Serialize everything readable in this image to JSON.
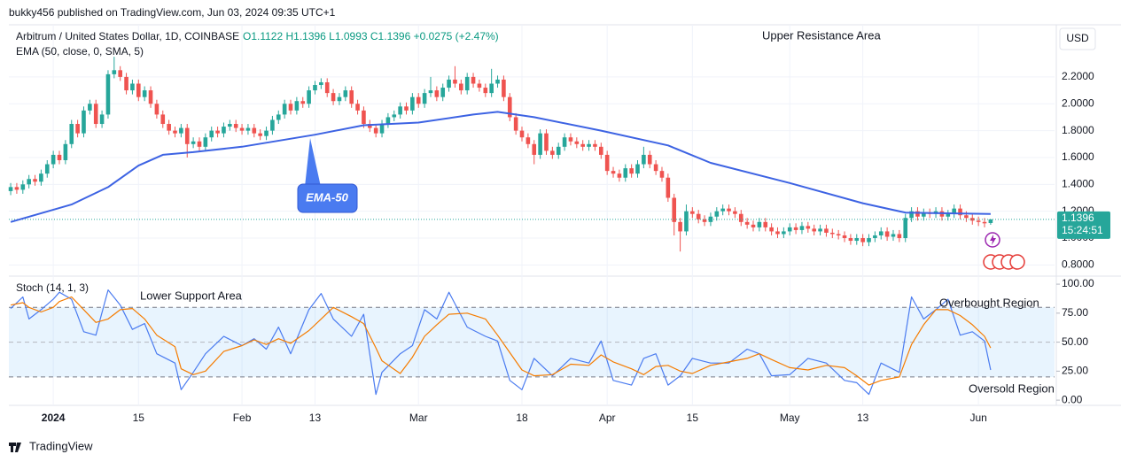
{
  "chart_data": {
    "type": "candlestick",
    "header": "bukky456 published on TradingView.com, Jun 03, 2024 09:35 UTC+1",
    "symbol": "Arbitrum / United States Dollar, 1D, COINBASE",
    "ohlc_text": "O1.1122 H1.1396 L1.0993 C1.1396 +0.0275 (+2.47%)",
    "currency": "USD",
    "up_color": "#26a69a",
    "down_color": "#ef5350",
    "grid": true,
    "ylim": [
      0.73,
      2.575
    ],
    "yticks": [
      {
        "value": 0.8,
        "label": "0.8000"
      },
      {
        "value": 1.0,
        "label": "1.0000"
      },
      {
        "value": 1.2,
        "label": "1.2000"
      },
      {
        "value": 1.4,
        "label": "1.4000"
      },
      {
        "value": 1.6,
        "label": "1.6000"
      },
      {
        "value": 1.8,
        "label": "1.8000"
      },
      {
        "value": 2.0,
        "label": "2.0000"
      },
      {
        "value": 2.2,
        "label": "2.2000"
      }
    ],
    "xlim": [
      -0.3,
      171.5
    ],
    "xticks": [
      {
        "value": 7,
        "label": "2024"
      },
      {
        "value": 21,
        "label": "15"
      },
      {
        "value": 38,
        "label": "Feb"
      },
      {
        "value": 50,
        "label": "13"
      },
      {
        "value": 67,
        "label": "Mar"
      },
      {
        "value": 84,
        "label": "18"
      },
      {
        "value": 98,
        "label": "Apr"
      },
      {
        "value": 112,
        "label": "15"
      },
      {
        "value": 128,
        "label": "May"
      },
      {
        "value": 140,
        "label": "13"
      },
      {
        "value": 159,
        "label": "Jun"
      }
    ],
    "candles": [
      [
        1.35,
        1.41,
        1.32,
        1.38
      ],
      [
        1.38,
        1.41,
        1.33,
        1.36
      ],
      [
        1.36,
        1.43,
        1.33,
        1.4
      ],
      [
        1.4,
        1.47,
        1.37,
        1.44
      ],
      [
        1.44,
        1.47,
        1.39,
        1.42
      ],
      [
        1.42,
        1.51,
        1.39,
        1.48
      ],
      [
        1.48,
        1.58,
        1.45,
        1.55
      ],
      [
        1.55,
        1.65,
        1.52,
        1.62
      ],
      [
        1.62,
        1.65,
        1.55,
        1.58
      ],
      [
        1.58,
        1.73,
        1.55,
        1.7
      ],
      [
        1.7,
        1.88,
        1.67,
        1.85
      ],
      [
        1.85,
        1.88,
        1.75,
        1.78
      ],
      [
        1.78,
        1.98,
        1.75,
        1.95
      ],
      [
        1.95,
        2.03,
        1.92,
        2.0
      ],
      [
        2.0,
        2.03,
        1.82,
        1.85
      ],
      [
        1.85,
        1.95,
        1.82,
        1.92
      ],
      [
        1.92,
        2.25,
        1.89,
        2.22
      ],
      [
        2.22,
        2.35,
        2.19,
        2.25
      ],
      [
        2.25,
        2.28,
        2.17,
        2.2
      ],
      [
        2.2,
        2.23,
        2.07,
        2.1
      ],
      [
        2.1,
        2.18,
        2.07,
        2.15
      ],
      [
        2.15,
        2.18,
        2.02,
        2.05
      ],
      [
        2.05,
        2.13,
        2.02,
        2.1
      ],
      [
        2.1,
        2.13,
        1.97,
        2.0
      ],
      [
        2.0,
        2.03,
        1.89,
        1.92
      ],
      [
        1.92,
        1.95,
        1.82,
        1.85
      ],
      [
        1.85,
        1.88,
        1.77,
        1.8
      ],
      [
        1.8,
        1.83,
        1.75,
        1.78
      ],
      [
        1.78,
        1.85,
        1.75,
        1.82
      ],
      [
        1.82,
        1.85,
        1.6,
        1.7
      ],
      [
        1.7,
        1.75,
        1.67,
        1.72
      ],
      [
        1.72,
        1.75,
        1.65,
        1.68
      ],
      [
        1.68,
        1.78,
        1.65,
        1.75
      ],
      [
        1.75,
        1.83,
        1.72,
        1.8
      ],
      [
        1.8,
        1.83,
        1.75,
        1.78
      ],
      [
        1.78,
        1.86,
        1.75,
        1.83
      ],
      [
        1.83,
        1.88,
        1.8,
        1.85
      ],
      [
        1.85,
        1.88,
        1.79,
        1.82
      ],
      [
        1.82,
        1.85,
        1.77,
        1.8
      ],
      [
        1.8,
        1.85,
        1.77,
        1.82
      ],
      [
        1.82,
        1.85,
        1.75,
        1.78
      ],
      [
        1.78,
        1.81,
        1.73,
        1.76
      ],
      [
        1.76,
        1.83,
        1.73,
        1.8
      ],
      [
        1.8,
        1.91,
        1.77,
        1.88
      ],
      [
        1.88,
        1.95,
        1.85,
        1.92
      ],
      [
        1.92,
        2.03,
        1.89,
        2.0
      ],
      [
        2.0,
        2.03,
        1.92,
        1.95
      ],
      [
        1.95,
        2.05,
        1.92,
        2.02
      ],
      [
        2.02,
        2.05,
        1.97,
        2.0
      ],
      [
        2.0,
        2.13,
        1.97,
        2.1
      ],
      [
        2.1,
        2.17,
        2.07,
        2.14
      ],
      [
        2.14,
        2.19,
        2.11,
        2.16
      ],
      [
        2.16,
        2.19,
        2.05,
        2.08
      ],
      [
        2.08,
        2.11,
        1.99,
        2.02
      ],
      [
        2.02,
        2.08,
        1.99,
        2.05
      ],
      [
        2.05,
        2.13,
        2.02,
        2.1
      ],
      [
        2.1,
        2.13,
        1.97,
        2.0
      ],
      [
        2.0,
        2.03,
        1.92,
        1.95
      ],
      [
        1.95,
        1.98,
        1.82,
        1.85
      ],
      [
        1.85,
        1.88,
        1.79,
        1.82
      ],
      [
        1.82,
        1.85,
        1.75,
        1.78
      ],
      [
        1.78,
        1.88,
        1.75,
        1.85
      ],
      [
        1.85,
        1.93,
        1.82,
        1.9
      ],
      [
        1.9,
        1.95,
        1.87,
        1.92
      ],
      [
        1.92,
        2.01,
        1.89,
        1.98
      ],
      [
        1.98,
        2.01,
        1.92,
        1.95
      ],
      [
        1.95,
        2.08,
        1.92,
        2.05
      ],
      [
        2.05,
        2.08,
        1.97,
        2.0
      ],
      [
        2.0,
        2.11,
        1.97,
        2.08
      ],
      [
        2.08,
        2.2,
        2.05,
        2.1
      ],
      [
        2.1,
        2.13,
        2.02,
        2.05
      ],
      [
        2.05,
        2.15,
        2.02,
        2.12
      ],
      [
        2.12,
        2.21,
        2.09,
        2.18
      ],
      [
        2.18,
        2.28,
        2.12,
        2.15
      ],
      [
        2.15,
        2.18,
        2.07,
        2.1
      ],
      [
        2.1,
        2.23,
        2.07,
        2.2
      ],
      [
        2.2,
        2.23,
        2.12,
        2.15
      ],
      [
        2.15,
        2.18,
        2.09,
        2.12
      ],
      [
        2.12,
        2.15,
        2.05,
        2.08
      ],
      [
        2.08,
        2.26,
        2.05,
        2.15
      ],
      [
        2.15,
        2.21,
        2.12,
        2.18
      ],
      [
        2.18,
        2.21,
        2.02,
        2.05
      ],
      [
        2.05,
        2.08,
        1.87,
        1.9
      ],
      [
        1.9,
        1.93,
        1.77,
        1.8
      ],
      [
        1.8,
        1.83,
        1.72,
        1.75
      ],
      [
        1.75,
        1.78,
        1.67,
        1.7
      ],
      [
        1.7,
        1.73,
        1.55,
        1.62
      ],
      [
        1.62,
        1.81,
        1.59,
        1.78
      ],
      [
        1.78,
        1.81,
        1.62,
        1.65
      ],
      [
        1.65,
        1.68,
        1.59,
        1.62
      ],
      [
        1.62,
        1.71,
        1.59,
        1.68
      ],
      [
        1.68,
        1.78,
        1.65,
        1.75
      ],
      [
        1.75,
        1.78,
        1.69,
        1.72
      ],
      [
        1.72,
        1.75,
        1.67,
        1.7
      ],
      [
        1.7,
        1.73,
        1.65,
        1.68
      ],
      [
        1.68,
        1.73,
        1.65,
        1.7
      ],
      [
        1.7,
        1.73,
        1.65,
        1.68
      ],
      [
        1.68,
        1.71,
        1.59,
        1.62
      ],
      [
        1.62,
        1.65,
        1.47,
        1.5
      ],
      [
        1.5,
        1.53,
        1.45,
        1.48
      ],
      [
        1.48,
        1.51,
        1.42,
        1.45
      ],
      [
        1.45,
        1.55,
        1.42,
        1.52
      ],
      [
        1.52,
        1.55,
        1.45,
        1.48
      ],
      [
        1.48,
        1.58,
        1.45,
        1.55
      ],
      [
        1.55,
        1.68,
        1.52,
        1.62
      ],
      [
        1.62,
        1.65,
        1.52,
        1.55
      ],
      [
        1.55,
        1.58,
        1.47,
        1.5
      ],
      [
        1.5,
        1.53,
        1.42,
        1.45
      ],
      [
        1.45,
        1.48,
        1.27,
        1.3
      ],
      [
        1.3,
        1.33,
        1.02,
        1.12
      ],
      [
        1.12,
        1.15,
        0.9,
        1.05
      ],
      [
        1.05,
        1.25,
        1.02,
        1.2
      ],
      [
        1.2,
        1.23,
        1.15,
        1.18
      ],
      [
        1.18,
        1.21,
        1.11,
        1.14
      ],
      [
        1.14,
        1.17,
        1.09,
        1.12
      ],
      [
        1.12,
        1.19,
        1.09,
        1.16
      ],
      [
        1.16,
        1.23,
        1.13,
        1.2
      ],
      [
        1.2,
        1.25,
        1.17,
        1.22
      ],
      [
        1.22,
        1.25,
        1.17,
        1.2
      ],
      [
        1.2,
        1.23,
        1.15,
        1.18
      ],
      [
        1.18,
        1.21,
        1.09,
        1.12
      ],
      [
        1.12,
        1.15,
        1.07,
        1.1
      ],
      [
        1.1,
        1.13,
        1.05,
        1.08
      ],
      [
        1.08,
        1.15,
        1.05,
        1.12
      ],
      [
        1.12,
        1.15,
        1.05,
        1.08
      ],
      [
        1.08,
        1.11,
        1.02,
        1.05
      ],
      [
        1.05,
        1.08,
        1.0,
        1.03
      ],
      [
        1.03,
        1.08,
        1.0,
        1.05
      ],
      [
        1.05,
        1.11,
        1.02,
        1.08
      ],
      [
        1.08,
        1.11,
        1.03,
        1.06
      ],
      [
        1.06,
        1.12,
        1.03,
        1.09
      ],
      [
        1.09,
        1.12,
        1.04,
        1.07
      ],
      [
        1.07,
        1.1,
        1.02,
        1.05
      ],
      [
        1.05,
        1.1,
        1.02,
        1.07
      ],
      [
        1.07,
        1.1,
        1.01,
        1.04
      ],
      [
        1.04,
        1.07,
        1.0,
        1.03
      ],
      [
        1.03,
        1.06,
        0.99,
        1.02
      ],
      [
        1.02,
        1.05,
        0.97,
        1.0
      ],
      [
        1.0,
        1.03,
        0.95,
        0.98
      ],
      [
        0.98,
        1.03,
        0.95,
        1.0
      ],
      [
        1.0,
        1.03,
        0.94,
        0.97
      ],
      [
        0.97,
        1.03,
        0.94,
        1.0
      ],
      [
        1.0,
        1.05,
        0.97,
        1.02
      ],
      [
        1.02,
        1.08,
        0.99,
        1.05
      ],
      [
        1.05,
        1.08,
        0.98,
        1.01
      ],
      [
        1.01,
        1.06,
        0.98,
        1.03
      ],
      [
        1.03,
        1.06,
        0.97,
        1.0
      ],
      [
        1.0,
        1.18,
        0.97,
        1.15
      ],
      [
        1.15,
        1.23,
        1.12,
        1.2
      ],
      [
        1.2,
        1.23,
        1.13,
        1.16
      ],
      [
        1.16,
        1.22,
        1.13,
        1.19
      ],
      [
        1.19,
        1.22,
        1.15,
        1.18
      ],
      [
        1.18,
        1.23,
        1.15,
        1.2
      ],
      [
        1.2,
        1.23,
        1.13,
        1.16
      ],
      [
        1.16,
        1.21,
        1.13,
        1.18
      ],
      [
        1.18,
        1.25,
        1.15,
        1.22
      ],
      [
        1.22,
        1.25,
        1.14,
        1.17
      ],
      [
        1.17,
        1.2,
        1.12,
        1.15
      ],
      [
        1.15,
        1.18,
        1.1,
        1.13
      ],
      [
        1.13,
        1.16,
        1.09,
        1.12
      ],
      [
        1.12,
        1.15,
        1.08,
        1.11
      ],
      [
        1.1122,
        1.1396,
        1.0993,
        1.1396
      ]
    ],
    "last_price": 1.1396,
    "countdown": "15:24:51",
    "ema": {
      "name": "EMA (50, close, 0, SMA, 5)",
      "color": "#3d63e3",
      "x": [
        0,
        10,
        16,
        21,
        25,
        30,
        38,
        50,
        58,
        67,
        76,
        80,
        86,
        97,
        108,
        115,
        128,
        140,
        147,
        161
      ],
      "values": [
        1.12,
        1.25,
        1.38,
        1.54,
        1.62,
        1.64,
        1.68,
        1.77,
        1.84,
        1.86,
        1.92,
        1.94,
        1.9,
        1.8,
        1.69,
        1.56,
        1.41,
        1.26,
        1.19,
        1.18
      ]
    },
    "stoch": {
      "name": "Stoch (14, 1, 3)",
      "ylim": [
        -4.5,
        105.4
      ],
      "yticks": [
        {
          "value": 0,
          "label": "0.00"
        },
        {
          "value": 25,
          "label": "25.00"
        },
        {
          "value": 50,
          "label": "50.00"
        },
        {
          "value": 75,
          "label": "75.00"
        },
        {
          "value": 100,
          "label": "100.00"
        }
      ],
      "bands": [
        20,
        80
      ],
      "midline": 50,
      "x": [
        0,
        2,
        3,
        5,
        7,
        8,
        10,
        12,
        14,
        16,
        18,
        20,
        22,
        24,
        27,
        28,
        30,
        32,
        35,
        38,
        40,
        42,
        44,
        46,
        49,
        51,
        53,
        56,
        58,
        60,
        61,
        64,
        66,
        68,
        70,
        72,
        75,
        78,
        80,
        82,
        84,
        86,
        89,
        92,
        95,
        97,
        99,
        102,
        104,
        106,
        108,
        110,
        112,
        115,
        118,
        121,
        123,
        125,
        128,
        131,
        134,
        137,
        139,
        141,
        143,
        146,
        148,
        150,
        152,
        154,
        156,
        158,
        160,
        161
      ],
      "series": [
        {
          "color": "#4a7bf0",
          "values": [
            79,
            89,
            70,
            78,
            87,
            93,
            87,
            59,
            56,
            95,
            82,
            61,
            66,
            40,
            32,
            9,
            24,
            40,
            55,
            47,
            53,
            44,
            63,
            40,
            78,
            92,
            70,
            55,
            74,
            5,
            24,
            40,
            47,
            78,
            70,
            93,
            63,
            55,
            51,
            17,
            9,
            36,
            21,
            36,
            32,
            51,
            17,
            13,
            36,
            40,
            13,
            21,
            36,
            32,
            32,
            44,
            40,
            21,
            22,
            36,
            32,
            17,
            15,
            5,
            32,
            24,
            89,
            70,
            78,
            87,
            56,
            59,
            51,
            26
          ]
        },
        {
          "color": "#f57c00",
          "values": [
            82,
            84,
            80,
            76,
            80,
            85,
            89,
            78,
            67,
            70,
            78,
            79,
            70,
            56,
            46,
            27,
            22,
            25,
            42,
            47,
            52,
            48,
            53,
            49,
            60,
            70,
            80,
            72,
            66,
            45,
            34,
            23,
            37,
            55,
            65,
            74,
            75,
            70,
            56,
            41,
            26,
            21,
            22,
            31,
            30,
            39,
            33,
            27,
            22,
            29,
            30,
            25,
            23,
            30,
            33,
            36,
            40,
            35,
            28,
            26,
            30,
            28,
            21,
            13,
            17,
            20,
            48,
            65,
            78,
            78,
            73,
            65,
            55,
            45
          ]
        }
      ]
    },
    "annotations": [
      "Upper Resistance Area",
      "Lower Support Area",
      "Overbought Region",
      "Oversold Region"
    ],
    "callout": "EMA-50",
    "footer": "TradingView"
  }
}
